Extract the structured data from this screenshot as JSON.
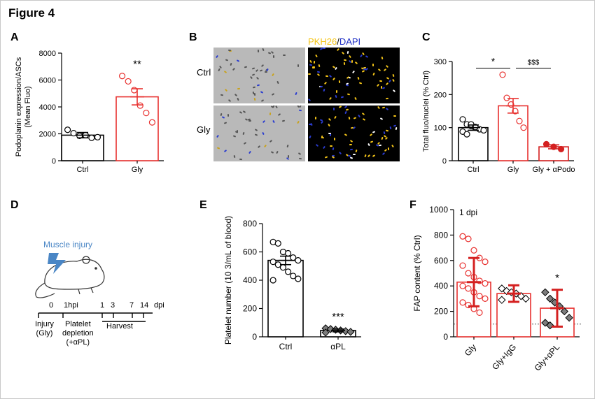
{
  "figure_title": "Figure 4",
  "colors": {
    "black": "#000000",
    "red": "#e8302e",
    "dark_red": "#d42020",
    "blue": "#4a86c5",
    "yellow": "#f5c518",
    "grey_fill": "#7d7d7d"
  },
  "panel_b": {
    "label": "B",
    "stain_a": "PKH26",
    "stain_sep": "/",
    "stain_b": "DAPI",
    "rows": [
      "Ctrl",
      "Gly"
    ]
  },
  "panel_d": {
    "label": "D",
    "icon": "mouse-with-lightning-icon",
    "injury_label": "Muscle injury",
    "timeline_ticks": [
      "0",
      "1hpi",
      "1",
      "3",
      "7",
      "14"
    ],
    "timeline_unit": "dpi",
    "step1": "Injury\n(Gly)",
    "step2": "Platelet\ndepletion\n(+αPL)",
    "step3": "Harvest"
  },
  "chart_data": [
    {
      "panel": "A",
      "type": "bar",
      "categories": [
        "Ctrl",
        "Gly"
      ],
      "values": [
        1900,
        4750
      ],
      "sem": [
        200,
        600
      ],
      "points": [
        [
          2300,
          2050,
          1850,
          1900,
          1700,
          1750
        ],
        [
          6300,
          5900,
          5250,
          4100,
          3550,
          2850
        ]
      ],
      "ylabel": "Podoplanin expression/ASCs\n(Mean Fluo)",
      "ylim": [
        0,
        8000
      ],
      "yticks": [
        0,
        2000,
        4000,
        6000,
        8000
      ],
      "annotations": [
        {
          "category": "Gly",
          "text": "**"
        }
      ],
      "colors": [
        "#000000",
        "#e8302e"
      ]
    },
    {
      "panel": "C",
      "type": "bar",
      "categories": [
        "Ctrl",
        "Gly",
        "Gly + αPodo"
      ],
      "values": [
        100,
        166,
        42
      ],
      "sem": [
        8,
        22,
        6
      ],
      "points": [
        [
          125,
          110,
          105,
          100,
          95,
          92,
          88,
          80,
          110,
          102
        ],
        [
          260,
          190,
          170,
          150,
          120,
          100
        ],
        [
          50,
          42,
          35
        ]
      ],
      "ylabel": "Total fluo/nuclei (% Ctrl)",
      "ylim": [
        0,
        300
      ],
      "yticks": [
        0,
        100,
        200,
        300
      ],
      "annotations": [
        {
          "between": [
            "Ctrl",
            "Gly"
          ],
          "text": "*"
        },
        {
          "between": [
            "Gly",
            "Gly + αPodo"
          ],
          "text": "$$$"
        }
      ],
      "colors": [
        "#000000",
        "#e8302e",
        "#d42020"
      ]
    },
    {
      "panel": "E",
      "type": "bar",
      "categories": [
        "Ctrl",
        "αPL"
      ],
      "values": [
        540,
        45
      ],
      "sem": [
        30,
        10
      ],
      "points": [
        [
          670,
          660,
          600,
          590,
          560,
          540,
          530,
          510,
          490,
          460,
          430,
          410,
          400
        ],
        [
          60,
          55,
          50,
          45,
          40,
          35,
          30
        ]
      ],
      "ylabel": "Platelet number (10 3/mL of blood)",
      "ylim": [
        0,
        800
      ],
      "yticks": [
        0,
        200,
        400,
        600,
        800
      ],
      "annotations": [
        {
          "category": "αPL",
          "text": "***"
        }
      ],
      "colors": [
        "#000000",
        "#000000"
      ]
    },
    {
      "panel": "F",
      "type": "bar",
      "subtitle": "1 dpi",
      "categories": [
        "Gly",
        "Gly+IgG",
        "Gly+αPL"
      ],
      "values": [
        430,
        340,
        225
      ],
      "sd": [
        190,
        65,
        145
      ],
      "points": [
        [
          790,
          770,
          680,
          620,
          590,
          560,
          500,
          470,
          440,
          420,
          400,
          380,
          350,
          320,
          300,
          270,
          250,
          220,
          190
        ],
        [
          380,
          360,
          350,
          340,
          320,
          300,
          290
        ],
        [
          350,
          300,
          270,
          240,
          200,
          150,
          110,
          90
        ]
      ],
      "ylabel": "FAP content (% Ctrl)",
      "ylim": [
        0,
        1000
      ],
      "yticks": [
        0,
        200,
        400,
        600,
        800,
        1000
      ],
      "reference_line": 100,
      "annotations": [
        {
          "category": "Gly+αPL",
          "text": "*"
        }
      ],
      "colors": [
        "#e8302e",
        "#e8302e",
        "#e8302e"
      ]
    }
  ]
}
